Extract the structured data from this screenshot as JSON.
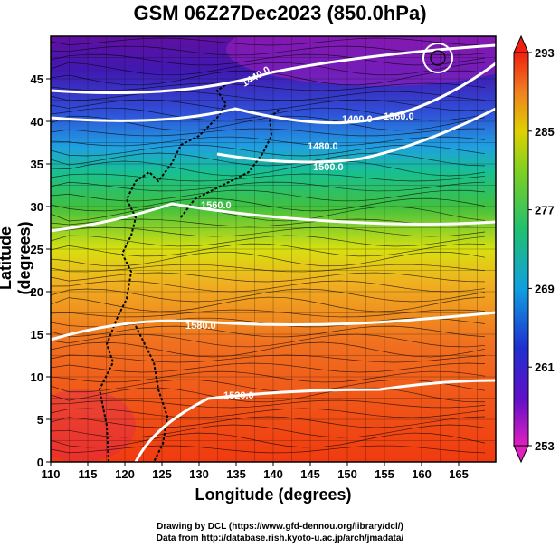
{
  "title": "GSM 06Z27Dec2023 (850.0hPa)",
  "x_axis": {
    "label": "Longitude (degrees)",
    "range": [
      110,
      170
    ],
    "ticks": [
      "110",
      "115",
      "120",
      "125",
      "130",
      "135",
      "140",
      "145",
      "150",
      "155",
      "160",
      "165"
    ]
  },
  "y_axis": {
    "label": "Latitude  (degrees)",
    "range": [
      0,
      50
    ],
    "ticks": [
      "0",
      "5",
      "10",
      "15",
      "20",
      "25",
      "30",
      "35",
      "40",
      "45"
    ]
  },
  "colorbar": {
    "ticks": [
      "253",
      "261",
      "269",
      "277",
      "285",
      "293"
    ],
    "min": 253,
    "max": 293,
    "colors": [
      "#e020c0",
      "#3020c8",
      "#10a0e0",
      "#20c060",
      "#e0d000",
      "#f04010"
    ]
  },
  "contours": [
    {
      "label": "1400.0"
    },
    {
      "label": "1360.0"
    },
    {
      "label": "1480.0"
    },
    {
      "label": "1560.0"
    },
    {
      "label": "1520.0"
    },
    {
      "label": "1440.0"
    },
    {
      "label": "1500.0"
    },
    {
      "label": "1580.0"
    }
  ],
  "credits": {
    "line1": "Drawing by DCL (https://www.gfd-dennou.org/library/dcl/)",
    "line2": "Data from http://database.rish.kyoto-u.ac.jp/arch/jmadata/"
  }
}
